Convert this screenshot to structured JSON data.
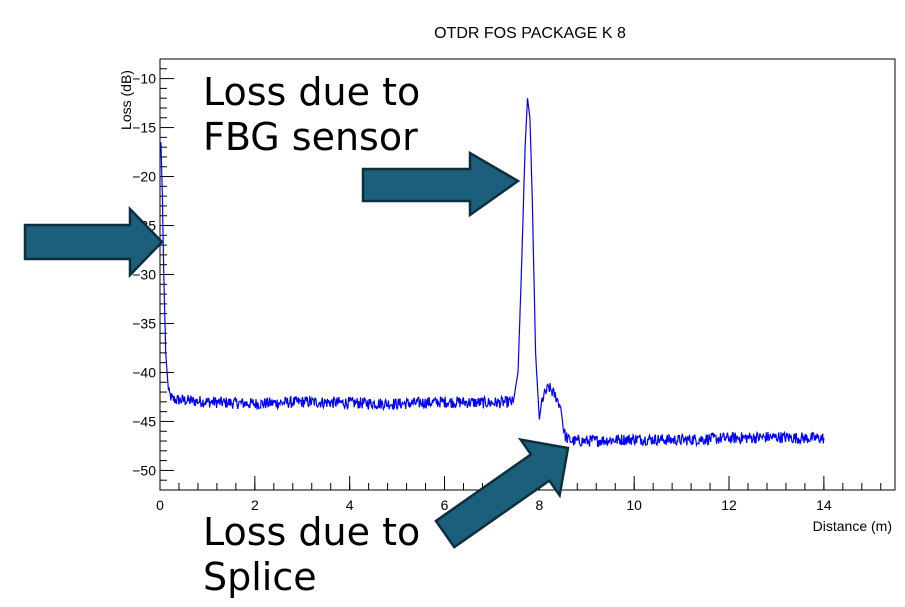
{
  "chart_data": {
    "type": "line",
    "title": "OTDR FOS PACKAGE K 8",
    "xlabel": "Distance (m)",
    "ylabel": "Loss (dB)",
    "xlim": [
      0,
      15.5
    ],
    "ylim": [
      -52,
      -8
    ],
    "x_ticks": [
      0,
      2,
      4,
      6,
      8,
      10,
      12,
      14
    ],
    "y_ticks": [
      -50,
      -45,
      -40,
      -35,
      -30,
      -25,
      -20,
      -15,
      -10
    ],
    "grid": false,
    "series": [
      {
        "color": "#0000ff",
        "x": [
          0,
          0.02,
          0.05,
          0.08,
          0.12,
          0.18,
          0.25,
          0.35,
          1,
          2,
          3,
          4,
          5,
          6,
          7,
          7.45,
          7.55,
          7.62,
          7.7,
          7.75,
          7.8,
          7.85,
          7.92,
          8.0,
          8.05,
          8.1,
          8.2,
          8.35,
          8.45,
          8.5,
          8.55,
          8.6,
          8.7,
          9,
          10,
          11,
          12,
          13,
          13.5,
          14
        ],
        "y": [
          -17,
          -16.5,
          -22,
          -30,
          -38,
          -42,
          -42.7,
          -42.8,
          -43.0,
          -43.2,
          -43.0,
          -43.1,
          -43.2,
          -43.0,
          -43.1,
          -43.0,
          -40,
          -30,
          -17,
          -12,
          -14,
          -22,
          -38,
          -44.8,
          -43,
          -42.3,
          -41.5,
          -42.5,
          -43.5,
          -45.5,
          -46.5,
          -46.8,
          -47.0,
          -47.0,
          -46.8,
          -46.9,
          -46.7,
          -46.6,
          -46.7,
          -46.7
        ]
      }
    ]
  },
  "annotations": {
    "fbg_text": "Loss due to\nFBG sensor",
    "splice_text": "Loss due to\nSplice"
  },
  "colors": {
    "arrow_fill": "#1b5f7c",
    "arrow_stroke": "#0d2f3d",
    "series": "#0000ff"
  }
}
